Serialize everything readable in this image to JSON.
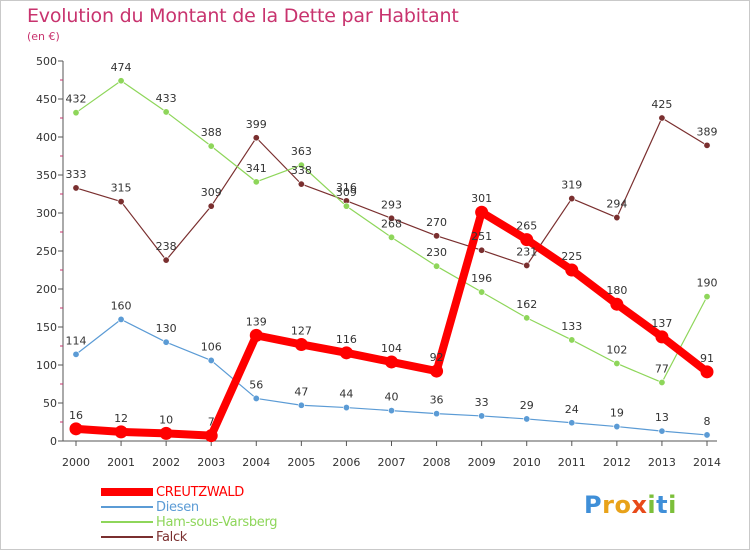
{
  "chart_data": {
    "type": "line",
    "title": "Evolution du Montant de la Dette par Habitant",
    "subtitle": "(en €)",
    "x": [
      2000,
      2001,
      2002,
      2003,
      2004,
      2005,
      2006,
      2007,
      2008,
      2009,
      2010,
      2011,
      2012,
      2013,
      2014
    ],
    "ylim": [
      0,
      500
    ],
    "yticks": [
      0,
      50,
      100,
      150,
      200,
      250,
      300,
      350,
      400,
      450,
      500
    ],
    "grid": false,
    "legend_position": "bottom-left",
    "series": [
      {
        "name": "CREUTZWALD",
        "color": "#ff0000",
        "values": [
          16,
          12,
          10,
          7,
          139,
          127,
          116,
          104,
          92,
          301,
          265,
          225,
          180,
          137,
          91
        ]
      },
      {
        "name": "Diesen",
        "color": "#5b9bd5",
        "values": [
          114,
          160,
          130,
          106,
          56,
          47,
          44,
          40,
          36,
          33,
          29,
          24,
          19,
          13,
          8
        ]
      },
      {
        "name": "Ham-sous-Varsberg",
        "color": "#8ed65a",
        "values": [
          432,
          474,
          433,
          388,
          341,
          363,
          309,
          268,
          230,
          196,
          162,
          133,
          102,
          77,
          190
        ]
      },
      {
        "name": "Falck",
        "color": "#7a2f2f",
        "values": [
          333,
          315,
          238,
          309,
          399,
          338,
          316,
          293,
          270,
          251,
          231,
          319,
          294,
          425,
          389
        ]
      }
    ]
  },
  "logo": {
    "letters": [
      "P",
      "r",
      "o",
      "x",
      "i",
      "t",
      "i"
    ],
    "colors": [
      "#3f8fd8",
      "#e8a21a",
      "#e8a21a",
      "#e84a1a",
      "#7cbf3a",
      "#3f8fd8",
      "#7cbf3a"
    ]
  }
}
